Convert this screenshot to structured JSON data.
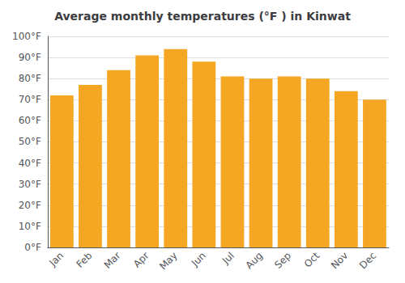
{
  "chart_data": {
    "type": "bar",
    "title": "Average monthly temperatures (°F ) in Kinwat",
    "categories": [
      "Jan",
      "Feb",
      "Mar",
      "Apr",
      "May",
      "Jun",
      "Jul",
      "Aug",
      "Sep",
      "Oct",
      "Nov",
      "Dec"
    ],
    "values": [
      72,
      77,
      84,
      91,
      94,
      88,
      81,
      80,
      81,
      80,
      74,
      70
    ],
    "color": "#F5A623",
    "ylim": [
      0,
      100
    ],
    "yticks": [
      {
        "value": 0,
        "label": "0°F"
      },
      {
        "value": 10,
        "label": "10°F"
      },
      {
        "value": 20,
        "label": "20°F"
      },
      {
        "value": 30,
        "label": "30°F"
      },
      {
        "value": 40,
        "label": "40°F"
      },
      {
        "value": 50,
        "label": "50°F"
      },
      {
        "value": 60,
        "label": "60°F"
      },
      {
        "value": 70,
        "label": "70°F"
      },
      {
        "value": 80,
        "label": "80°F"
      },
      {
        "value": 90,
        "label": "90°F"
      },
      {
        "value": 100,
        "label": "100°F"
      }
    ],
    "grid": true
  }
}
